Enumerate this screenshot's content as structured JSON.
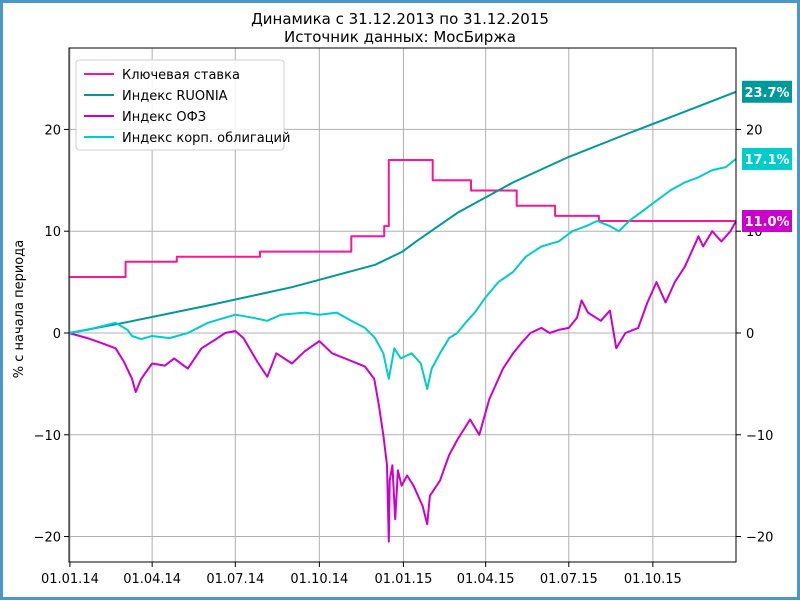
{
  "chart_data": {
    "type": "line",
    "title": "Динамика с 31.12.2013 по 31.12.2015",
    "subtitle": "Источник данных: МосБиржа",
    "ylabel": "% с начала периода",
    "xlabel": "",
    "ylim": [
      -22.5,
      28
    ],
    "y_ticks": [
      -20,
      -10,
      0,
      10,
      20
    ],
    "y_tick_labels": [
      "−20",
      "−10",
      "0",
      "10",
      "20"
    ],
    "x_ticks": [
      "01.01.14",
      "01.04.14",
      "01.07.14",
      "01.10.14",
      "01.01.15",
      "01.04.15",
      "01.07.15",
      "01.10.15"
    ],
    "x_tick_dates": [
      "2014-01-01",
      "2014-04-01",
      "2014-07-01",
      "2014-10-01",
      "2015-01-01",
      "2015-04-01",
      "2015-07-01",
      "2015-10-01"
    ],
    "x_range": [
      "2013-12-31",
      "2015-12-31"
    ],
    "grid": true,
    "legend_position": "top-left",
    "series": [
      {
        "name": "Ключевая ставка",
        "color": "#ff1493",
        "step": true,
        "points": [
          [
            "2013-12-31",
            5.5
          ],
          [
            "2014-03-03",
            7.0
          ],
          [
            "2014-04-28",
            7.5
          ],
          [
            "2014-07-28",
            8.0
          ],
          [
            "2014-11-05",
            9.5
          ],
          [
            "2014-12-11",
            10.5
          ],
          [
            "2014-12-16",
            17.0
          ],
          [
            "2015-02-02",
            15.0
          ],
          [
            "2015-03-16",
            14.0
          ],
          [
            "2015-05-05",
            12.5
          ],
          [
            "2015-06-16",
            11.5
          ],
          [
            "2015-08-03",
            11.0
          ],
          [
            "2015-12-31",
            11.0
          ]
        ]
      },
      {
        "name": "Индекс RUONIA",
        "color": "#009999",
        "step": false,
        "points": [
          [
            "2013-12-31",
            0.0
          ],
          [
            "2014-03-01",
            1.0
          ],
          [
            "2014-06-01",
            2.7
          ],
          [
            "2014-09-01",
            4.5
          ],
          [
            "2014-12-01",
            6.7
          ],
          [
            "2014-12-31",
            8.0
          ],
          [
            "2015-01-15",
            9.0
          ],
          [
            "2015-03-01",
            11.8
          ],
          [
            "2015-05-01",
            14.8
          ],
          [
            "2015-07-01",
            17.3
          ],
          [
            "2015-09-01",
            19.5
          ],
          [
            "2015-11-01",
            21.6
          ],
          [
            "2015-12-31",
            23.7
          ]
        ]
      },
      {
        "name": "Индекс ОФЗ",
        "color": "#cc00cc",
        "step": false,
        "points": [
          [
            "2013-12-31",
            0.0
          ],
          [
            "2014-01-20",
            -0.5
          ],
          [
            "2014-02-05",
            -1.0
          ],
          [
            "2014-02-20",
            -1.5
          ],
          [
            "2014-03-01",
            -2.8
          ],
          [
            "2014-03-10",
            -4.5
          ],
          [
            "2014-03-14",
            -5.8
          ],
          [
            "2014-03-20",
            -4.5
          ],
          [
            "2014-04-01",
            -3.0
          ],
          [
            "2014-04-15",
            -3.2
          ],
          [
            "2014-04-25",
            -2.5
          ],
          [
            "2014-05-10",
            -3.5
          ],
          [
            "2014-05-25",
            -1.5
          ],
          [
            "2014-06-10",
            -0.6
          ],
          [
            "2014-06-20",
            0.0
          ],
          [
            "2014-07-01",
            0.2
          ],
          [
            "2014-07-10",
            -0.5
          ],
          [
            "2014-07-25",
            -2.8
          ],
          [
            "2014-08-05",
            -4.3
          ],
          [
            "2014-08-15",
            -2.0
          ],
          [
            "2014-09-01",
            -3.0
          ],
          [
            "2014-09-15",
            -1.8
          ],
          [
            "2014-10-01",
            -0.8
          ],
          [
            "2014-10-15",
            -2.0
          ],
          [
            "2014-11-01",
            -2.6
          ],
          [
            "2014-11-20",
            -3.3
          ],
          [
            "2014-11-30",
            -4.5
          ],
          [
            "2014-12-05",
            -7.0
          ],
          [
            "2014-12-10",
            -10.0
          ],
          [
            "2014-12-14",
            -13.0
          ],
          [
            "2014-12-16",
            -20.5
          ],
          [
            "2014-12-17",
            -14.5
          ],
          [
            "2014-12-20",
            -13.0
          ],
          [
            "2014-12-23",
            -18.3
          ],
          [
            "2014-12-26",
            -13.5
          ],
          [
            "2014-12-30",
            -15.0
          ],
          [
            "2015-01-05",
            -14.0
          ],
          [
            "2015-01-12",
            -15.0
          ],
          [
            "2015-01-22",
            -17.0
          ],
          [
            "2015-01-27",
            -18.8
          ],
          [
            "2015-01-30",
            -16.0
          ],
          [
            "2015-02-10",
            -14.5
          ],
          [
            "2015-02-20",
            -12.0
          ],
          [
            "2015-03-01",
            -10.5
          ],
          [
            "2015-03-15",
            -8.5
          ],
          [
            "2015-03-25",
            -10.0
          ],
          [
            "2015-04-05",
            -6.5
          ],
          [
            "2015-04-10",
            -5.5
          ],
          [
            "2015-04-20",
            -3.5
          ],
          [
            "2015-05-01",
            -2.0
          ],
          [
            "2015-05-10",
            -1.0
          ],
          [
            "2015-05-20",
            0.0
          ],
          [
            "2015-06-01",
            0.5
          ],
          [
            "2015-06-10",
            0.0
          ],
          [
            "2015-06-20",
            0.3
          ],
          [
            "2015-07-01",
            0.5
          ],
          [
            "2015-07-10",
            1.5
          ],
          [
            "2015-07-15",
            3.2
          ],
          [
            "2015-07-22",
            2.0
          ],
          [
            "2015-08-05",
            1.2
          ],
          [
            "2015-08-15",
            2.2
          ],
          [
            "2015-08-22",
            -1.5
          ],
          [
            "2015-09-01",
            0.0
          ],
          [
            "2015-09-15",
            0.5
          ],
          [
            "2015-09-25",
            3.0
          ],
          [
            "2015-10-05",
            5.0
          ],
          [
            "2015-10-15",
            3.0
          ],
          [
            "2015-10-25",
            5.0
          ],
          [
            "2015-11-05",
            6.5
          ],
          [
            "2015-11-20",
            9.5
          ],
          [
            "2015-11-25",
            8.5
          ],
          [
            "2015-12-05",
            10.0
          ],
          [
            "2015-12-15",
            9.0
          ],
          [
            "2015-12-25",
            10.0
          ],
          [
            "2015-12-31",
            11.0
          ]
        ]
      },
      {
        "name": "Индекс корп. облигаций",
        "color": "#00cccc",
        "step": false,
        "points": [
          [
            "2013-12-31",
            0.0
          ],
          [
            "2014-01-20",
            0.3
          ],
          [
            "2014-02-20",
            1.0
          ],
          [
            "2014-03-05",
            0.3
          ],
          [
            "2014-03-10",
            -0.3
          ],
          [
            "2014-03-20",
            -0.6
          ],
          [
            "2014-04-01",
            -0.3
          ],
          [
            "2014-04-20",
            -0.5
          ],
          [
            "2014-05-10",
            0.0
          ],
          [
            "2014-06-01",
            1.0
          ],
          [
            "2014-06-20",
            1.5
          ],
          [
            "2014-07-01",
            1.8
          ],
          [
            "2014-07-20",
            1.5
          ],
          [
            "2014-08-05",
            1.2
          ],
          [
            "2014-08-20",
            1.8
          ],
          [
            "2014-09-15",
            2.0
          ],
          [
            "2014-10-01",
            1.8
          ],
          [
            "2014-10-20",
            2.0
          ],
          [
            "2014-11-05",
            1.2
          ],
          [
            "2014-11-20",
            0.5
          ],
          [
            "2014-12-01",
            -0.5
          ],
          [
            "2014-12-10",
            -2.0
          ],
          [
            "2014-12-16",
            -4.5
          ],
          [
            "2014-12-22",
            -1.5
          ],
          [
            "2014-12-29",
            -2.5
          ],
          [
            "2015-01-10",
            -2.0
          ],
          [
            "2015-01-20",
            -3.0
          ],
          [
            "2015-01-27",
            -5.5
          ],
          [
            "2015-02-01",
            -3.5
          ],
          [
            "2015-02-10",
            -2.0
          ],
          [
            "2015-02-20",
            -0.5
          ],
          [
            "2015-03-01",
            0.0
          ],
          [
            "2015-03-10",
            1.0
          ],
          [
            "2015-03-20",
            2.0
          ],
          [
            "2015-04-01",
            3.5
          ],
          [
            "2015-04-15",
            5.0
          ],
          [
            "2015-05-01",
            6.0
          ],
          [
            "2015-05-15",
            7.5
          ],
          [
            "2015-06-01",
            8.5
          ],
          [
            "2015-06-20",
            9.0
          ],
          [
            "2015-07-05",
            10.0
          ],
          [
            "2015-07-20",
            10.5
          ],
          [
            "2015-08-01",
            11.0
          ],
          [
            "2015-08-15",
            10.5
          ],
          [
            "2015-08-25",
            10.0
          ],
          [
            "2015-09-05",
            11.0
          ],
          [
            "2015-09-20",
            12.0
          ],
          [
            "2015-10-05",
            13.0
          ],
          [
            "2015-10-20",
            14.0
          ],
          [
            "2015-11-05",
            14.8
          ],
          [
            "2015-11-20",
            15.3
          ],
          [
            "2015-12-05",
            16.0
          ],
          [
            "2015-12-20",
            16.3
          ],
          [
            "2015-12-31",
            17.1
          ]
        ]
      }
    ],
    "end_labels": [
      {
        "text": "23.7%",
        "value": 23.7,
        "bg": "#009999"
      },
      {
        "text": "17.1%",
        "value": 17.1,
        "bg": "#00cccc"
      },
      {
        "text": "11.0%",
        "value": 11.0,
        "bg": "#cc00cc"
      }
    ]
  }
}
